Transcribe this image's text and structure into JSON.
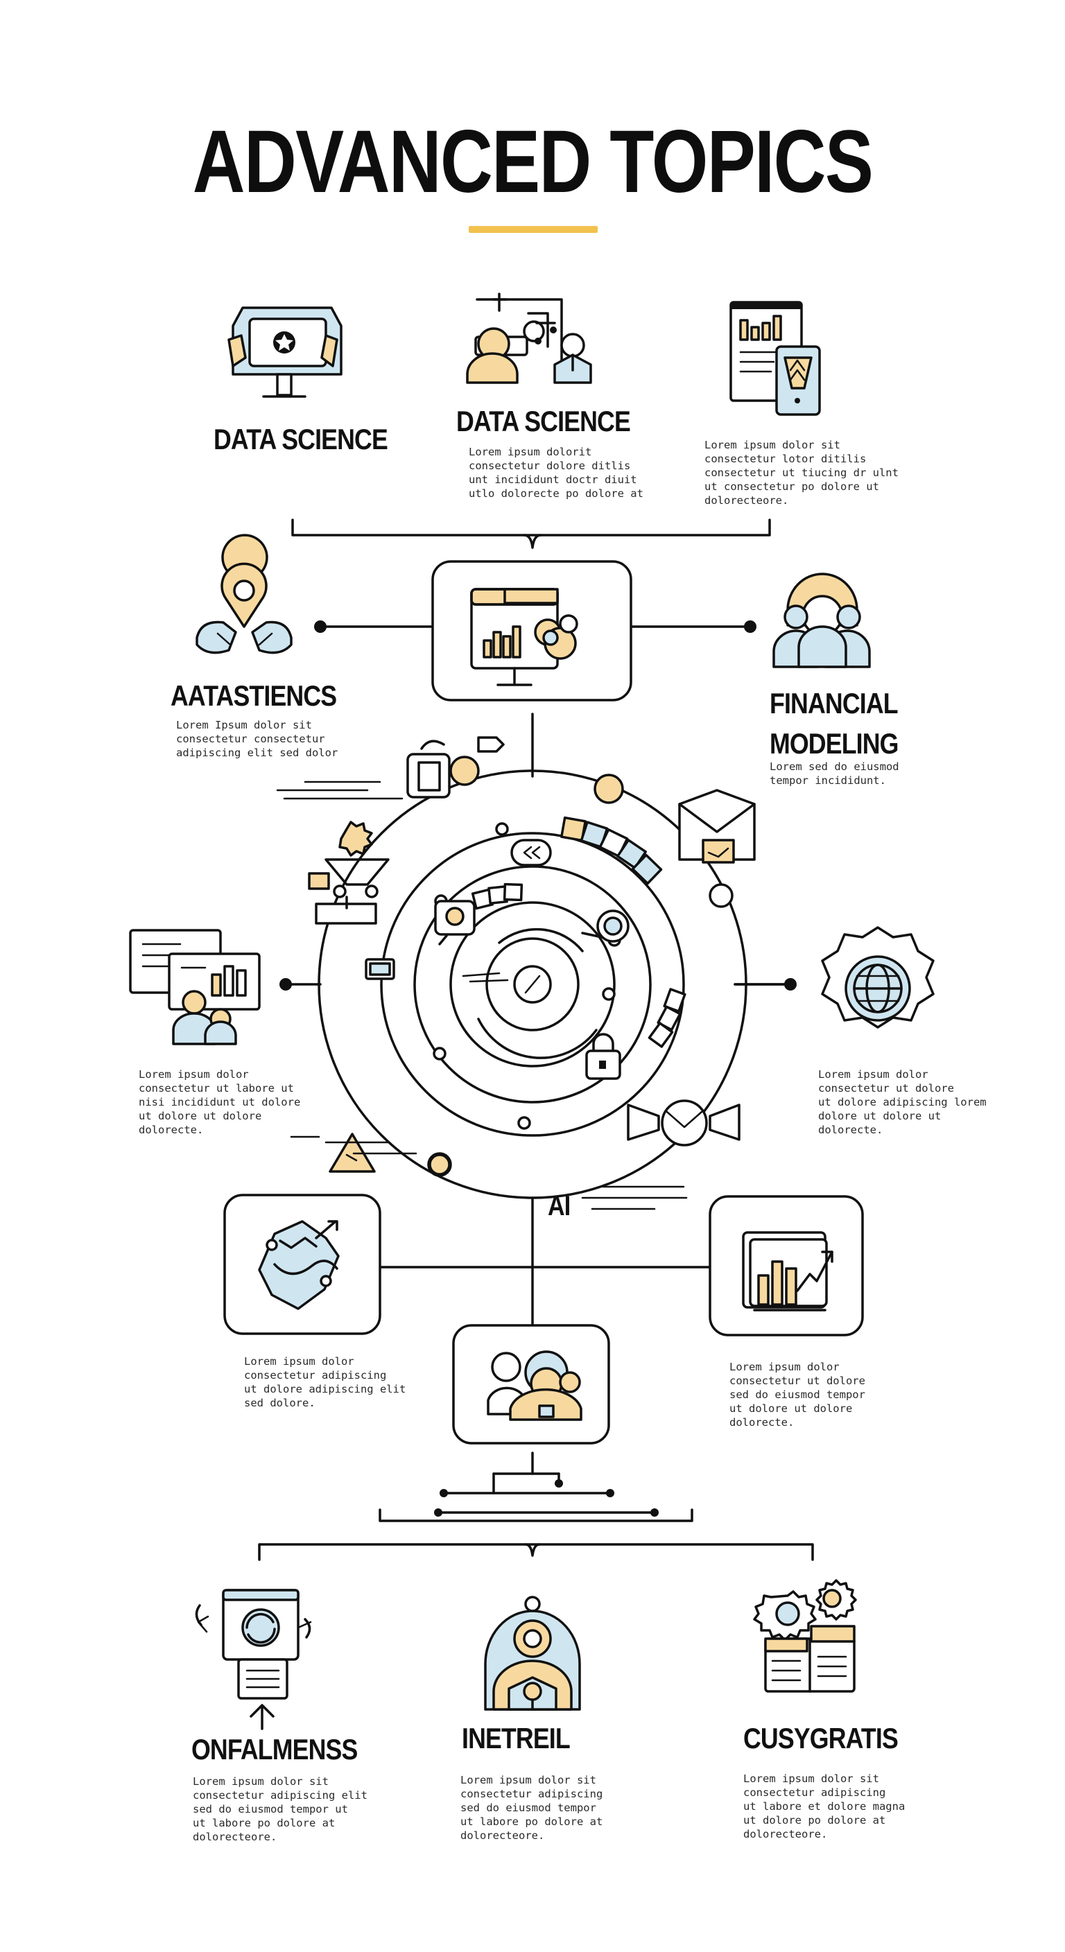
{
  "title": "ADVANCED TOPICS",
  "accent_color": "#F2C24F",
  "fill_blue": "#CFE6F1",
  "fill_yellow": "#F7D9A0",
  "top_row": [
    {
      "label": "DATA SCIENCE",
      "body": "",
      "icon": "dashboard-monitor-icon"
    },
    {
      "label": "DATA SCIENCE",
      "body": "Lorem ipsum dolorit\nconsectetur dolore ditlis\nunt incididunt doctr diuit\nutlo dolorecte po dolore at",
      "icon": "people-network-icon"
    },
    {
      "label": "",
      "body": "Lorem ipsum dolor sit\nconsectetur lotor ditilis\nconsectetur ut tiucing dr ulnt\nut consectetur po dolore ut\ndolorecteore.",
      "icon": "document-chart-icon"
    }
  ],
  "left_mid": {
    "label": "AATASTIENCS",
    "body": "Lorem Ipsum dolor sit\nconsectetur consectetur\nadipiscing elit sed dolor",
    "icon": "location-pin-icon"
  },
  "right_mid": {
    "label": "FINANCIAL\nMODELING",
    "body": "Lorem sed do eiusmod\ntempor incididunt.",
    "icon": "team-group-icon"
  },
  "left_side_text": "Lorem ipsum dolor\nconsectetur ut labore ut\nnisi incididunt ut dolore\nut dolore ut dolore\ndolorecte.",
  "right_side_text": "Lorem ipsum dolor\nconsectetur ut dolore\nut dolore adipiscing lorem\ndolore ut dolore ut\ndolorecte.",
  "ai_label": "AI",
  "lower_left_text": "Lorem ipsum dolor\nconsectetur adipiscing\nut dolore adipiscing elit\nsed dolore.",
  "lower_right_text": "Lorem ipsum dolor\nconsectetur ut dolore\nsed do eiusmod tempor\nut dolore ut dolore\ndolorecte.",
  "bottom_row": [
    {
      "label": "ONFALMENSS",
      "body": "Lorem ipsum dolor sit\nconsectetur adipiscing elit\nsed do eiusmod tempor ut\nut labore po dolore at\ndolorecteore.",
      "icon": "browser-gear-icon"
    },
    {
      "label": "INETREIL",
      "body": "Lorem ipsum dolor sit\nconsectetur adipiscing\nsed do eiusmod tempor\nut labore po dolore at\ndolorecteore.",
      "icon": "person-badge-icon"
    },
    {
      "label": "CUSYGRATIS",
      "body": "Lorem ipsum dolor sit\nconsectetur adipiscing\nut labore et dolore magna\nut dolore po dolore at\ndolorecteore.",
      "icon": "gears-calendar-icon"
    }
  ]
}
